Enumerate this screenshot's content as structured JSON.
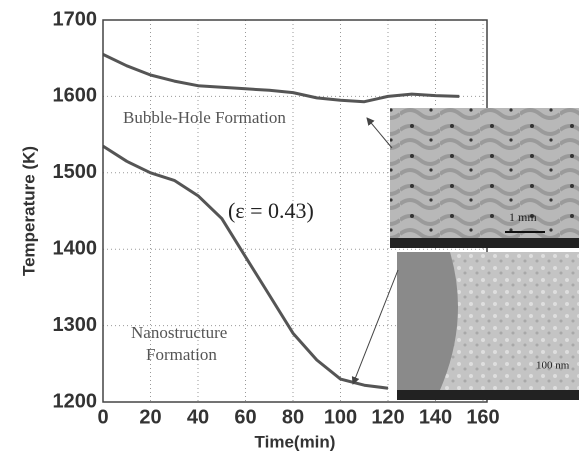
{
  "chart_data": {
    "type": "line",
    "xlabel": "Time(min)",
    "ylabel": "Temperature (K)",
    "x": [
      0,
      10,
      20,
      30,
      40,
      50,
      60,
      70,
      80,
      90,
      100,
      110,
      120,
      130,
      140,
      150
    ],
    "series": [
      {
        "color": "#555555",
        "values": [
          1655,
          1640,
          1628,
          1620,
          1614,
          1612,
          1610,
          1608,
          1605,
          1598,
          1595,
          1593,
          1600,
          1603,
          1601,
          1600
        ]
      },
      {
        "color": "#555555",
        "values": [
          1535,
          1515,
          1500,
          1490,
          1470,
          1440,
          1390,
          1340,
          1290,
          1255,
          1230,
          1222,
          1218,
          null,
          null,
          null
        ]
      }
    ],
    "xlim": [
      0,
      160
    ],
    "ylim": [
      1200,
      1700
    ],
    "xticks": [
      0,
      20,
      40,
      60,
      80,
      100,
      120,
      140,
      160
    ],
    "yticks": [
      1200,
      1300,
      1400,
      1500,
      1600,
      1700
    ],
    "grid": true,
    "annotations": [
      "Bubble-Hole Formation",
      "(ε = 0.43)",
      "Nanostructure",
      "Formation",
      "1 mm",
      "100 nm"
    ]
  }
}
